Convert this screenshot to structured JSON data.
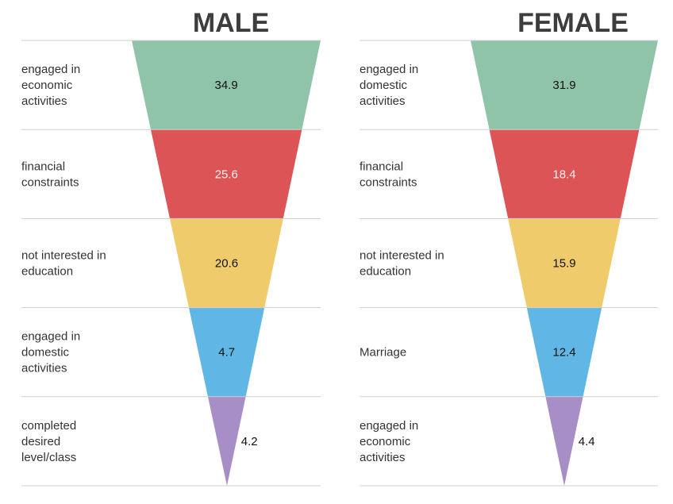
{
  "chart_data": [
    {
      "type": "funnel",
      "title": "MALE",
      "categories": [
        "engaged in economic activities",
        "financial constraints",
        "not interested in education",
        "engaged in domestic activities",
        "completed desired level/class"
      ],
      "category_lines": [
        [
          "engaged in",
          "economic",
          "activities"
        ],
        [
          "financial",
          "constraints"
        ],
        [
          "not interested in",
          "education"
        ],
        [
          "engaged in",
          "domestic",
          "activities"
        ],
        [
          "completed",
          "desired",
          "level/class"
        ]
      ],
      "values": [
        34.9,
        25.6,
        20.6,
        4.7,
        4.2
      ],
      "value_labels": [
        "34.9",
        "25.6",
        "20.6",
        "4.7",
        "4.2"
      ]
    },
    {
      "type": "funnel",
      "title": "FEMALE",
      "categories": [
        "engaged in domestic activities",
        "financial constraints",
        "not interested in education",
        "Marriage",
        "engaged in economic activities"
      ],
      "category_lines": [
        [
          "engaged in",
          "domestic",
          "activities"
        ],
        [
          "financial",
          "constraints"
        ],
        [
          "not interested in",
          "education"
        ],
        [
          "Marriage"
        ],
        [
          "engaged in",
          "economic",
          "activities"
        ]
      ],
      "values": [
        31.9,
        18.4,
        15.9,
        12.4,
        4.4
      ],
      "value_labels": [
        "31.9",
        "18.4",
        "15.9",
        "12.4",
        "4.4"
      ]
    }
  ],
  "colors": [
    "#8fc4a8",
    "#dc5456",
    "#efcb6c",
    "#60b6e4",
    "#a88ec6"
  ],
  "grid_color": "#cfcfcf",
  "value_label_light_on": [
    "#dc5456"
  ]
}
